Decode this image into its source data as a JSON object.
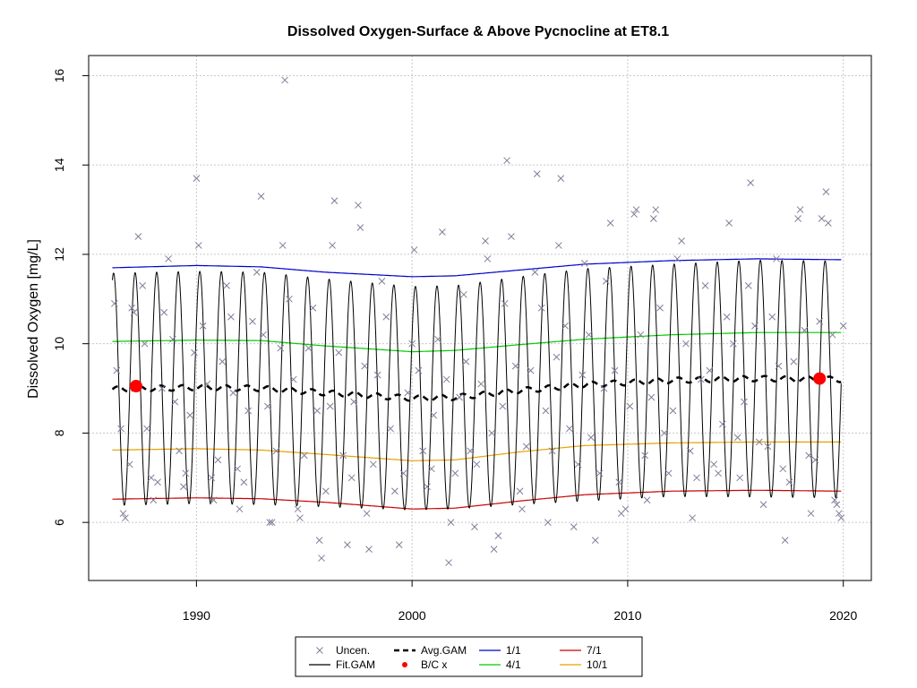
{
  "chart_data": {
    "type": "scatter",
    "title": "Dissolved Oxygen-Surface & Above Pycnocline at ET8.1",
    "xlabel": "",
    "ylabel": "Dissolved Oxygen [mg/L]",
    "xlim": [
      1985,
      2021.3
    ],
    "ylim": [
      4.7,
      16.45
    ],
    "xticks": [
      1990,
      2000,
      2010,
      2020
    ],
    "yticks": [
      6,
      8,
      10,
      12,
      14,
      16
    ],
    "grid": true,
    "legend_position": "bottom-center",
    "colors": {
      "uncen": "#7f7f99",
      "fit_gam": "#000000",
      "avg_gam": "#000000",
      "bc": "#ff0000",
      "q1_1": "#0000cc",
      "q4_1": "#00cc00",
      "q7_1": "#cc0000",
      "q10_1": "#e8a000",
      "grid": "#c8c8c8"
    },
    "legend": [
      {
        "key": "uncen",
        "label": "Uncen.",
        "symbol": "x"
      },
      {
        "key": "fit",
        "label": "Fit.GAM",
        "symbol": "line"
      },
      {
        "key": "avg",
        "label": "Avg.GAM",
        "symbol": "dashed"
      },
      {
        "key": "bc",
        "label": "B/C x",
        "symbol": "dot"
      },
      {
        "key": "q1",
        "label": "1/1",
        "symbol": "line"
      },
      {
        "key": "q4",
        "label": "4/1",
        "symbol": "line"
      },
      {
        "key": "q7",
        "label": "7/1",
        "symbol": "line"
      },
      {
        "key": "q10",
        "label": "10/1",
        "symbol": "line"
      }
    ],
    "series": [
      {
        "name": "1/1",
        "x": [
          1986.1,
          1990,
          1993,
          1996,
          2000,
          2002,
          2005,
          2008,
          2012,
          2016,
          2019.9
        ],
        "y": [
          11.7,
          11.75,
          11.72,
          11.6,
          11.5,
          11.52,
          11.65,
          11.78,
          11.86,
          11.9,
          11.88
        ]
      },
      {
        "name": "4/1",
        "x": [
          1986.1,
          1990,
          1993,
          1996,
          2000,
          2002,
          2005,
          2008,
          2012,
          2016,
          2019.9
        ],
        "y": [
          10.05,
          10.08,
          10.07,
          9.95,
          9.82,
          9.85,
          9.98,
          10.1,
          10.2,
          10.25,
          10.25
        ]
      },
      {
        "name": "7/1",
        "x": [
          1986.1,
          1990,
          1993,
          1996,
          2000,
          2002,
          2005,
          2008,
          2012,
          2016,
          2019.9
        ],
        "y": [
          6.52,
          6.55,
          6.53,
          6.45,
          6.3,
          6.32,
          6.48,
          6.62,
          6.7,
          6.72,
          6.7
        ]
      },
      {
        "name": "10/1",
        "x": [
          1986.1,
          1990,
          1993,
          1996,
          2000,
          2002,
          2005,
          2008,
          2012,
          2016,
          2019.9
        ],
        "y": [
          7.62,
          7.65,
          7.62,
          7.52,
          7.38,
          7.4,
          7.58,
          7.72,
          7.78,
          7.8,
          7.8
        ]
      },
      {
        "name": "Avg.GAM",
        "x": [
          1986.1,
          1990,
          1993,
          1996,
          2000,
          2002,
          2005,
          2008,
          2012,
          2016,
          2019.9
        ],
        "y": [
          8.98,
          9.02,
          9.0,
          8.9,
          8.78,
          8.8,
          8.95,
          9.08,
          9.18,
          9.22,
          9.2
        ]
      },
      {
        "name": "Fit.GAM",
        "x_start": 1986.1,
        "x_end": 2019.9,
        "amplitude": [
          2.6,
          2.6,
          2.6,
          2.55,
          2.5,
          2.5,
          2.55,
          2.6,
          2.6,
          2.65,
          2.65
        ]
      }
    ],
    "bc_points": [
      {
        "x": 1987.2,
        "y": 9.05
      },
      {
        "x": 2018.9,
        "y": 9.22
      }
    ],
    "uncen_points": [
      [
        1986.2,
        10.9
      ],
      [
        1986.3,
        9.4
      ],
      [
        1986.5,
        8.1
      ],
      [
        1986.6,
        6.2
      ],
      [
        1986.7,
        6.1
      ],
      [
        1986.9,
        7.3
      ],
      [
        1987.0,
        10.8
      ],
      [
        1987.1,
        10.7
      ],
      [
        1987.3,
        12.4
      ],
      [
        1987.5,
        11.3
      ],
      [
        1987.6,
        10.0
      ],
      [
        1987.7,
        8.1
      ],
      [
        1987.9,
        7.0
      ],
      [
        1988.0,
        6.5
      ],
      [
        1988.2,
        6.9
      ],
      [
        1988.4,
        9.0
      ],
      [
        1988.5,
        10.7
      ],
      [
        1988.7,
        11.9
      ],
      [
        1988.9,
        10.1
      ],
      [
        1989.0,
        8.7
      ],
      [
        1989.2,
        7.6
      ],
      [
        1989.4,
        6.8
      ],
      [
        1989.5,
        7.1
      ],
      [
        1989.7,
        8.4
      ],
      [
        1989.9,
        9.8
      ],
      [
        1990.0,
        13.7
      ],
      [
        1990.1,
        12.2
      ],
      [
        1990.3,
        10.4
      ],
      [
        1990.5,
        9.1
      ],
      [
        1990.7,
        7.0
      ],
      [
        1990.8,
        6.5
      ],
      [
        1991.0,
        7.4
      ],
      [
        1991.2,
        9.6
      ],
      [
        1991.4,
        11.3
      ],
      [
        1991.6,
        10.6
      ],
      [
        1991.7,
        8.9
      ],
      [
        1991.9,
        7.2
      ],
      [
        1992.0,
        6.3
      ],
      [
        1992.2,
        6.9
      ],
      [
        1992.4,
        8.5
      ],
      [
        1992.6,
        10.5
      ],
      [
        1992.8,
        11.6
      ],
      [
        1993.0,
        13.3
      ],
      [
        1993.1,
        10.2
      ],
      [
        1993.3,
        8.6
      ],
      [
        1993.4,
        6.0
      ],
      [
        1993.5,
        6.0
      ],
      [
        1993.7,
        7.6
      ],
      [
        1993.9,
        9.9
      ],
      [
        1994.0,
        12.2
      ],
      [
        1994.1,
        15.9
      ],
      [
        1994.3,
        11.0
      ],
      [
        1994.5,
        9.2
      ],
      [
        1994.7,
        6.3
      ],
      [
        1994.8,
        6.1
      ],
      [
        1995.0,
        7.5
      ],
      [
        1995.2,
        9.9
      ],
      [
        1995.4,
        10.8
      ],
      [
        1995.6,
        8.5
      ],
      [
        1995.7,
        5.6
      ],
      [
        1995.8,
        5.2
      ],
      [
        1996.0,
        6.7
      ],
      [
        1996.2,
        8.6
      ],
      [
        1996.3,
        12.2
      ],
      [
        1996.4,
        13.2
      ],
      [
        1996.6,
        9.8
      ],
      [
        1996.8,
        7.5
      ],
      [
        1997.0,
        5.5
      ],
      [
        1997.2,
        7.0
      ],
      [
        1997.3,
        8.7
      ],
      [
        1997.5,
        13.1
      ],
      [
        1997.6,
        12.6
      ],
      [
        1997.8,
        9.5
      ],
      [
        1997.9,
        6.2
      ],
      [
        1998.0,
        5.4
      ],
      [
        1998.2,
        7.3
      ],
      [
        1998.4,
        9.3
      ],
      [
        1998.6,
        11.4
      ],
      [
        1998.8,
        10.6
      ],
      [
        1999.0,
        8.1
      ],
      [
        1999.2,
        6.7
      ],
      [
        1999.4,
        5.5
      ],
      [
        1999.6,
        7.1
      ],
      [
        1999.8,
        8.9
      ],
      [
        2000.0,
        10.0
      ],
      [
        2000.1,
        12.1
      ],
      [
        2000.3,
        9.4
      ],
      [
        2000.5,
        7.6
      ],
      [
        2000.7,
        6.8
      ],
      [
        2000.9,
        7.2
      ],
      [
        2001.0,
        8.4
      ],
      [
        2001.2,
        10.1
      ],
      [
        2001.4,
        12.5
      ],
      [
        2001.6,
        9.2
      ],
      [
        2001.7,
        5.1
      ],
      [
        2001.8,
        6.0
      ],
      [
        2002.0,
        7.1
      ],
      [
        2002.2,
        8.8
      ],
      [
        2002.4,
        11.1
      ],
      [
        2002.5,
        9.6
      ],
      [
        2002.7,
        7.6
      ],
      [
        2002.9,
        5.9
      ],
      [
        2003.0,
        7.3
      ],
      [
        2003.2,
        9.1
      ],
      [
        2003.4,
        12.3
      ],
      [
        2003.5,
        11.9
      ],
      [
        2003.7,
        8.0
      ],
      [
        2003.8,
        5.4
      ],
      [
        2004.0,
        5.7
      ],
      [
        2004.2,
        8.6
      ],
      [
        2004.3,
        10.9
      ],
      [
        2004.4,
        14.1
      ],
      [
        2004.6,
        12.4
      ],
      [
        2004.8,
        9.5
      ],
      [
        2005.0,
        6.7
      ],
      [
        2005.1,
        6.3
      ],
      [
        2005.3,
        7.7
      ],
      [
        2005.5,
        9.4
      ],
      [
        2005.7,
        11.6
      ],
      [
        2005.8,
        13.8
      ],
      [
        2006.0,
        10.8
      ],
      [
        2006.2,
        8.5
      ],
      [
        2006.3,
        6.0
      ],
      [
        2006.5,
        7.6
      ],
      [
        2006.7,
        9.7
      ],
      [
        2006.8,
        12.2
      ],
      [
        2006.9,
        13.7
      ],
      [
        2007.1,
        10.4
      ],
      [
        2007.3,
        8.1
      ],
      [
        2007.5,
        5.9
      ],
      [
        2007.7,
        7.3
      ],
      [
        2007.9,
        9.3
      ],
      [
        2008.0,
        11.8
      ],
      [
        2008.2,
        10.2
      ],
      [
        2008.3,
        7.9
      ],
      [
        2008.5,
        5.6
      ],
      [
        2008.7,
        7.1
      ],
      [
        2008.9,
        9.0
      ],
      [
        2009.0,
        11.4
      ],
      [
        2009.2,
        12.7
      ],
      [
        2009.4,
        9.4
      ],
      [
        2009.6,
        6.9
      ],
      [
        2009.7,
        6.2
      ],
      [
        2009.9,
        6.3
      ],
      [
        2010.1,
        8.6
      ],
      [
        2010.3,
        12.9
      ],
      [
        2010.4,
        13.0
      ],
      [
        2010.6,
        10.2
      ],
      [
        2010.8,
        7.5
      ],
      [
        2010.9,
        6.5
      ],
      [
        2011.1,
        8.8
      ],
      [
        2011.2,
        12.8
      ],
      [
        2011.3,
        13.0
      ],
      [
        2011.5,
        10.8
      ],
      [
        2011.7,
        8.0
      ],
      [
        2011.9,
        7.1
      ],
      [
        2012.1,
        8.5
      ],
      [
        2012.3,
        11.9
      ],
      [
        2012.5,
        12.3
      ],
      [
        2012.7,
        10.0
      ],
      [
        2012.9,
        7.6
      ],
      [
        2013.0,
        6.1
      ],
      [
        2013.2,
        7.0
      ],
      [
        2013.4,
        9.2
      ],
      [
        2013.6,
        11.3
      ],
      [
        2013.8,
        9.4
      ],
      [
        2014.0,
        7.3
      ],
      [
        2014.2,
        7.1
      ],
      [
        2014.4,
        8.2
      ],
      [
        2014.6,
        10.6
      ],
      [
        2014.7,
        12.7
      ],
      [
        2014.9,
        10.0
      ],
      [
        2015.1,
        7.9
      ],
      [
        2015.2,
        7.0
      ],
      [
        2015.4,
        8.7
      ],
      [
        2015.6,
        11.3
      ],
      [
        2015.7,
        13.6
      ],
      [
        2015.9,
        10.4
      ],
      [
        2016.1,
        7.8
      ],
      [
        2016.3,
        6.4
      ],
      [
        2016.5,
        7.7
      ],
      [
        2016.7,
        10.6
      ],
      [
        2016.9,
        11.9
      ],
      [
        2017.0,
        9.5
      ],
      [
        2017.2,
        7.2
      ],
      [
        2017.3,
        5.6
      ],
      [
        2017.5,
        6.9
      ],
      [
        2017.7,
        9.6
      ],
      [
        2017.9,
        12.8
      ],
      [
        2018.0,
        13.0
      ],
      [
        2018.2,
        10.3
      ],
      [
        2018.4,
        7.5
      ],
      [
        2018.5,
        6.2
      ],
      [
        2018.7,
        7.4
      ],
      [
        2018.9,
        10.5
      ],
      [
        2019.0,
        12.8
      ],
      [
        2019.2,
        13.4
      ],
      [
        2019.3,
        12.7
      ],
      [
        2019.5,
        10.2
      ],
      [
        2019.6,
        6.5
      ],
      [
        2019.7,
        6.4
      ],
      [
        2019.8,
        6.2
      ],
      [
        2019.9,
        6.1
      ],
      [
        2020.0,
        10.4
      ]
    ]
  }
}
